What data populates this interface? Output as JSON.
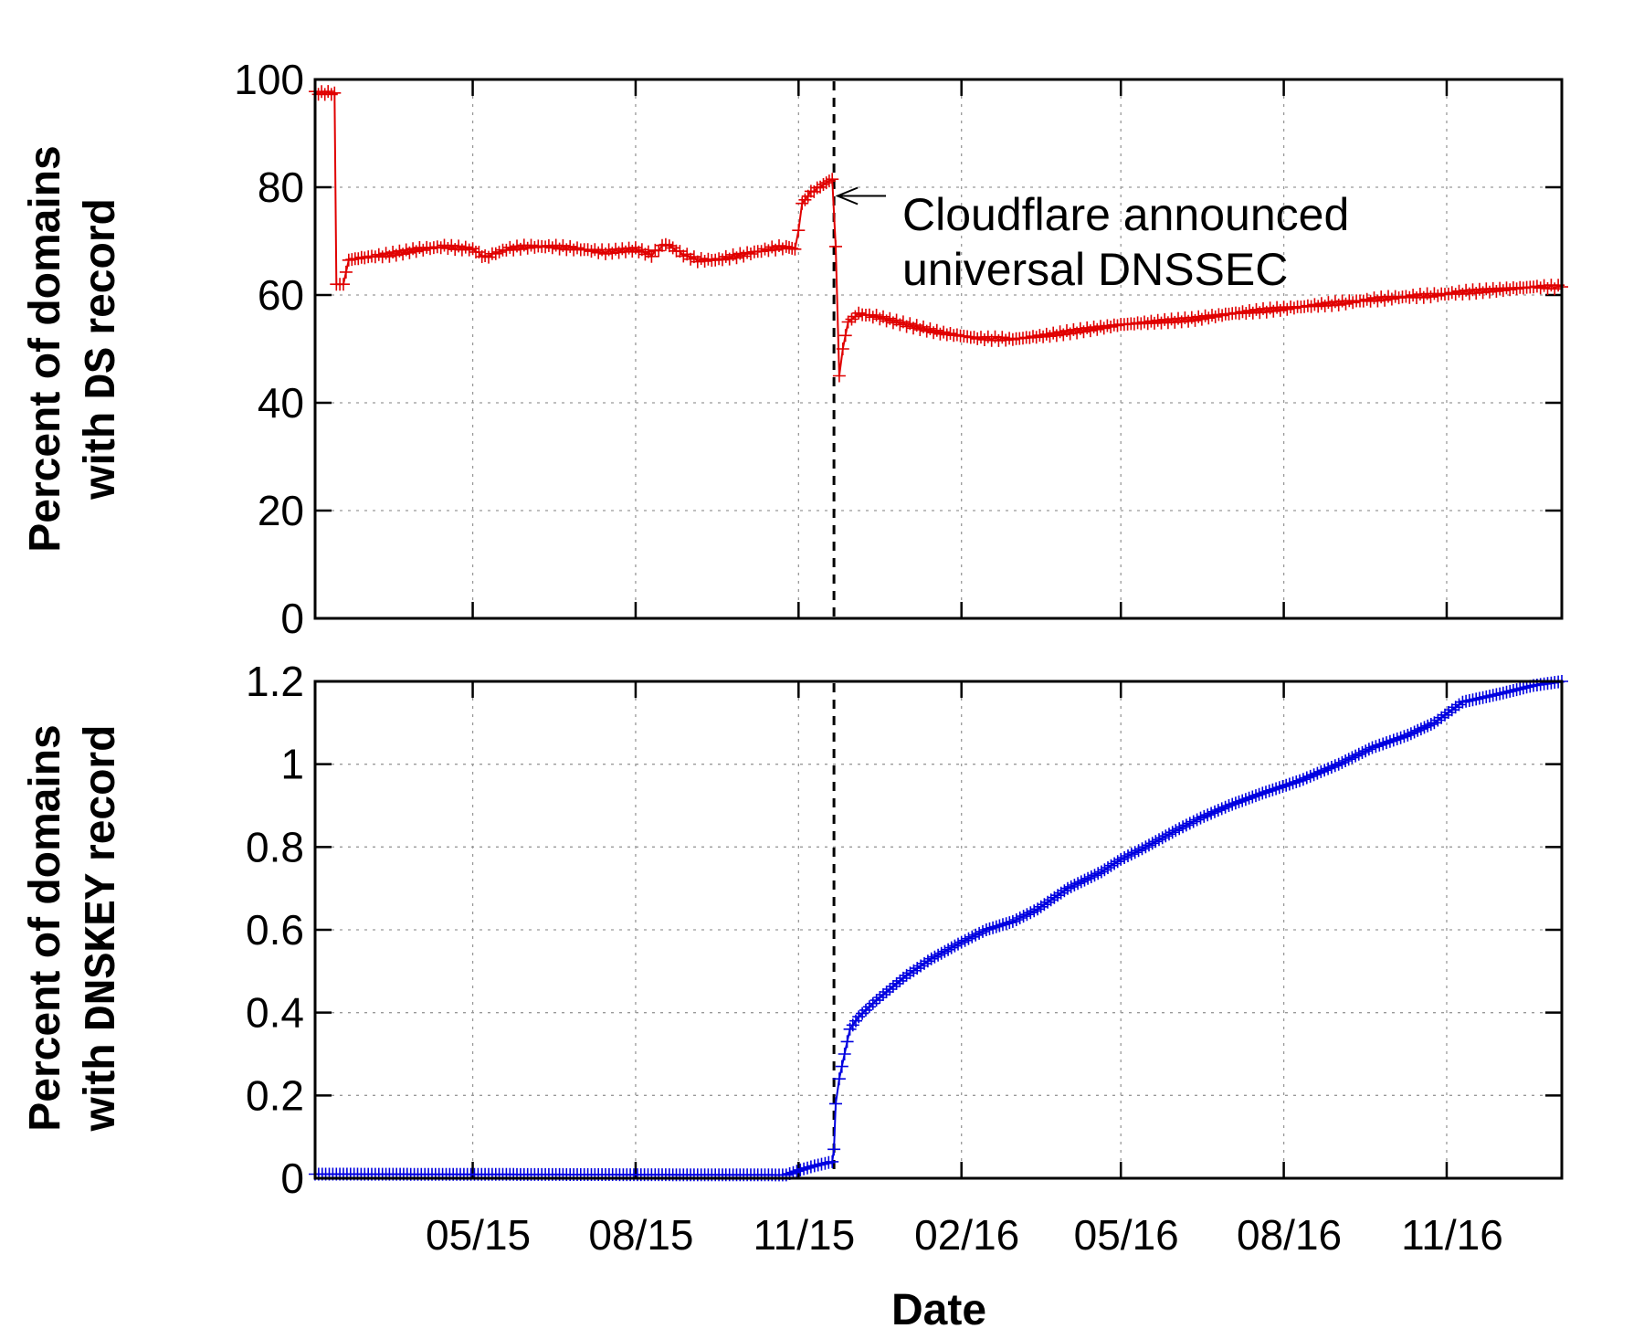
{
  "chart_data": [
    {
      "type": "line",
      "ylabel_line1": "Percent of domains",
      "ylabel_pre": "with ",
      "ylabel_code": "DS",
      "ylabel_post": " record",
      "ylim": [
        0,
        100
      ],
      "yticks": [
        0,
        20,
        40,
        60,
        80,
        100
      ],
      "ytick_labels": [
        "0",
        "20",
        "40",
        "60",
        "80",
        "100"
      ],
      "grid": true,
      "color": "#e00000",
      "marker": "+",
      "annotation": {
        "line1": "Cloudflare announced",
        "line2": "universal DNSSEC",
        "x": "2015-11-21",
        "y": 75
      },
      "vline_x": "2015-11-21",
      "series": [
        {
          "points": [
            [
              "2015-02-01",
              97.5
            ],
            [
              "2015-02-12",
              97.5
            ],
            [
              "2015-02-13",
              62
            ],
            [
              "2015-02-17",
              62
            ],
            [
              "2015-02-20",
              66.5
            ],
            [
              "2015-03-01",
              67
            ],
            [
              "2015-03-15",
              67.5
            ],
            [
              "2015-04-01",
              68.5
            ],
            [
              "2015-04-15",
              69
            ],
            [
              "2015-05-01",
              68.5
            ],
            [
              "2015-05-08",
              67
            ],
            [
              "2015-05-20",
              68.5
            ],
            [
              "2015-06-01",
              69
            ],
            [
              "2015-06-15",
              69
            ],
            [
              "2015-07-01",
              68.5
            ],
            [
              "2015-07-15",
              68
            ],
            [
              "2015-08-01",
              68.5
            ],
            [
              "2015-08-10",
              67.5
            ],
            [
              "2015-08-18",
              69.5
            ],
            [
              "2015-08-28",
              67.5
            ],
            [
              "2015-09-05",
              66.5
            ],
            [
              "2015-09-15",
              66.5
            ],
            [
              "2015-10-01",
              67.5
            ],
            [
              "2015-10-15",
              68.5
            ],
            [
              "2015-10-25",
              69
            ],
            [
              "2015-10-30",
              68.5
            ],
            [
              "2015-11-01",
              72
            ],
            [
              "2015-11-03",
              77
            ],
            [
              "2015-11-08",
              79
            ],
            [
              "2015-11-15",
              80.5
            ],
            [
              "2015-11-20",
              81.5
            ],
            [
              "2015-11-22",
              69
            ],
            [
              "2015-11-24",
              45
            ],
            [
              "2015-11-26",
              50
            ],
            [
              "2015-11-29",
              55
            ],
            [
              "2015-12-05",
              56.5
            ],
            [
              "2015-12-15",
              56
            ],
            [
              "2016-01-01",
              54.5
            ],
            [
              "2016-01-20",
              53
            ],
            [
              "2016-02-10",
              52
            ],
            [
              "2016-03-01",
              51.8
            ],
            [
              "2016-03-20",
              52.5
            ],
            [
              "2016-04-10",
              53.5
            ],
            [
              "2016-05-01",
              54.5
            ],
            [
              "2016-05-20",
              55
            ],
            [
              "2016-06-10",
              55.5
            ],
            [
              "2016-07-01",
              56.5
            ],
            [
              "2016-08-01",
              57.5
            ],
            [
              "2016-09-01",
              58.5
            ],
            [
              "2016-10-01",
              59.5
            ],
            [
              "2016-10-25",
              60
            ],
            [
              "2016-11-10",
              60.5
            ],
            [
              "2016-12-01",
              61
            ],
            [
              "2016-12-20",
              61.5
            ],
            [
              "2017-01-05",
              61.5
            ]
          ]
        }
      ]
    },
    {
      "type": "line",
      "xlabel": "Date",
      "ylabel_line1": "Percent of domains",
      "ylabel_pre": "with ",
      "ylabel_code": "DNSKEY",
      "ylabel_post": " record",
      "ylim": [
        0,
        1.2
      ],
      "yticks": [
        0,
        0.2,
        0.4,
        0.6,
        0.8,
        1,
        1.2
      ],
      "ytick_labels": [
        "0",
        "0.2",
        "0.4",
        "0.6",
        "0.8",
        "1",
        "1.2"
      ],
      "xtick_dates": [
        "2015-05-01",
        "2015-08-01",
        "2015-11-01",
        "2016-02-01",
        "2016-05-01",
        "2016-08-01",
        "2016-11-01"
      ],
      "xtick_labels": [
        "05/15",
        "08/15",
        "11/15",
        "02/16",
        "05/16",
        "08/16",
        "11/16"
      ],
      "grid": true,
      "color": "#0000e0",
      "marker": "+",
      "vline_x": "2015-11-21",
      "series": [
        {
          "points": [
            [
              "2015-02-01",
              0.01
            ],
            [
              "2015-10-25",
              0.008
            ],
            [
              "2015-11-02",
              0.02
            ],
            [
              "2015-11-10",
              0.03
            ],
            [
              "2015-11-20",
              0.04
            ],
            [
              "2015-11-21",
              0.07
            ],
            [
              "2015-11-22",
              0.18
            ],
            [
              "2015-11-24",
              0.24
            ],
            [
              "2015-11-27",
              0.3
            ],
            [
              "2015-11-30",
              0.36
            ],
            [
              "2015-12-05",
              0.39
            ],
            [
              "2015-12-15",
              0.43
            ],
            [
              "2016-01-01",
              0.49
            ],
            [
              "2016-01-15",
              0.53
            ],
            [
              "2016-02-01",
              0.57
            ],
            [
              "2016-02-15",
              0.6
            ],
            [
              "2016-03-01",
              0.62
            ],
            [
              "2016-03-15",
              0.65
            ],
            [
              "2016-04-01",
              0.7
            ],
            [
              "2016-04-20",
              0.74
            ],
            [
              "2016-05-01",
              0.77
            ],
            [
              "2016-05-15",
              0.8
            ],
            [
              "2016-06-01",
              0.84
            ],
            [
              "2016-06-15",
              0.87
            ],
            [
              "2016-07-01",
              0.9
            ],
            [
              "2016-07-20",
              0.93
            ],
            [
              "2016-08-10",
              0.96
            ],
            [
              "2016-09-01",
              1.0
            ],
            [
              "2016-09-20",
              1.04
            ],
            [
              "2016-10-10",
              1.07
            ],
            [
              "2016-10-25",
              1.1
            ],
            [
              "2016-11-10",
              1.15
            ],
            [
              "2016-12-01",
              1.17
            ],
            [
              "2016-12-20",
              1.19
            ],
            [
              "2017-01-05",
              1.2
            ]
          ]
        }
      ]
    }
  ]
}
